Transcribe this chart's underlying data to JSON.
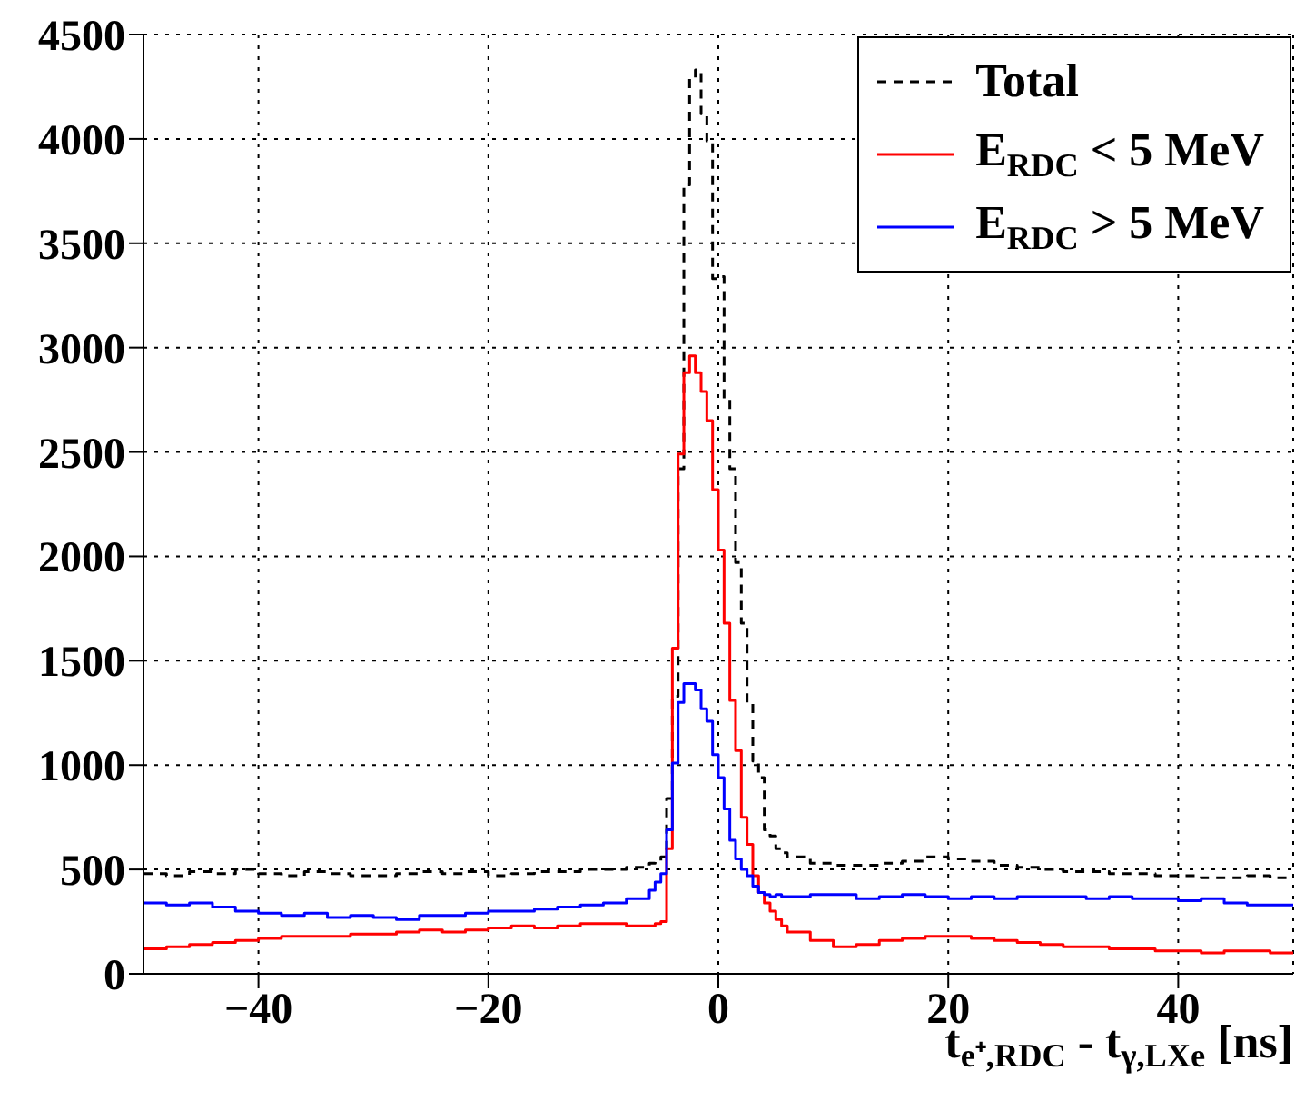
{
  "chart_data": {
    "type": "histogram",
    "xlabel": "t$_{e⁺,RDC}$ - t$_{γ,LXe}$ [ns]",
    "bins": [
      -50,
      -48,
      -46,
      -44,
      -42,
      -40,
      -38,
      -36,
      -34,
      -32,
      -30,
      -28,
      -26,
      -24,
      -22,
      -20,
      -18,
      -16,
      -14,
      -12,
      -10,
      -8,
      -6,
      -5.5,
      -5,
      -4.5,
      -4,
      -3.5,
      -3,
      -2.5,
      -2,
      -1.5,
      -1,
      -0.5,
      0,
      0.5,
      1,
      1.5,
      2,
      2.5,
      3,
      3.5,
      4,
      4.5,
      5,
      5.5,
      6,
      8,
      10,
      12,
      14,
      16,
      18,
      20,
      22,
      24,
      26,
      28,
      30,
      32,
      34,
      36,
      38,
      40,
      42,
      44,
      46,
      48,
      50
    ],
    "series": [
      {
        "name": "Total",
        "color": "#000000",
        "line_style": "dashed",
        "values": [
          480,
          470,
          490,
          480,
          500,
          480,
          470,
          490,
          480,
          470,
          470,
          480,
          490,
          480,
          490,
          470,
          480,
          490,
          490,
          500,
          500,
          510,
          530,
          540,
          560,
          840,
          1330,
          2420,
          3780,
          4290,
          4330,
          4120,
          3990,
          3330,
          3340,
          2750,
          2420,
          1970,
          1680,
          1300,
          1020,
          940,
          690,
          660,
          600,
          580,
          560,
          530,
          520,
          520,
          530,
          540,
          560,
          550,
          540,
          520,
          510,
          500,
          490,
          490,
          480,
          480,
          470,
          470,
          460,
          460,
          470,
          460
        ]
      },
      {
        "name": "E$_{RDC}$ < 5 MeV",
        "color": "#ff0000",
        "line_style": "solid",
        "values": [
          120,
          130,
          140,
          150,
          160,
          170,
          180,
          180,
          180,
          190,
          190,
          200,
          210,
          200,
          210,
          220,
          230,
          220,
          230,
          240,
          240,
          230,
          230,
          240,
          250,
          600,
          1560,
          2490,
          2880,
          2960,
          2880,
          2790,
          2650,
          2320,
          2030,
          1680,
          1310,
          1070,
          750,
          620,
          470,
          390,
          340,
          300,
          260,
          230,
          200,
          160,
          130,
          140,
          160,
          170,
          180,
          180,
          170,
          160,
          150,
          140,
          130,
          130,
          120,
          120,
          110,
          110,
          100,
          110,
          110,
          100
        ]
      },
      {
        "name": "E$_{RDC}$ > 5 MeV",
        "color": "#0000ff",
        "line_style": "solid",
        "values": [
          340,
          330,
          340,
          320,
          300,
          290,
          280,
          290,
          270,
          280,
          270,
          260,
          280,
          280,
          290,
          300,
          300,
          310,
          320,
          330,
          340,
          360,
          400,
          440,
          480,
          690,
          1010,
          1300,
          1390,
          1390,
          1360,
          1270,
          1210,
          1050,
          940,
          790,
          640,
          550,
          500,
          470,
          420,
          390,
          380,
          370,
          380,
          370,
          370,
          380,
          380,
          360,
          370,
          380,
          370,
          360,
          370,
          360,
          370,
          370,
          370,
          360,
          370,
          360,
          360,
          350,
          360,
          340,
          330,
          330
        ]
      }
    ],
    "xlim": [
      -50,
      50
    ],
    "xticks": [
      -40,
      -20,
      0,
      20,
      40
    ],
    "ylim": [
      0,
      4500
    ],
    "yticks": [
      0,
      500,
      1000,
      1500,
      2000,
      2500,
      3000,
      3500,
      4000,
      4500
    ],
    "grid": true,
    "legend": "top right"
  }
}
